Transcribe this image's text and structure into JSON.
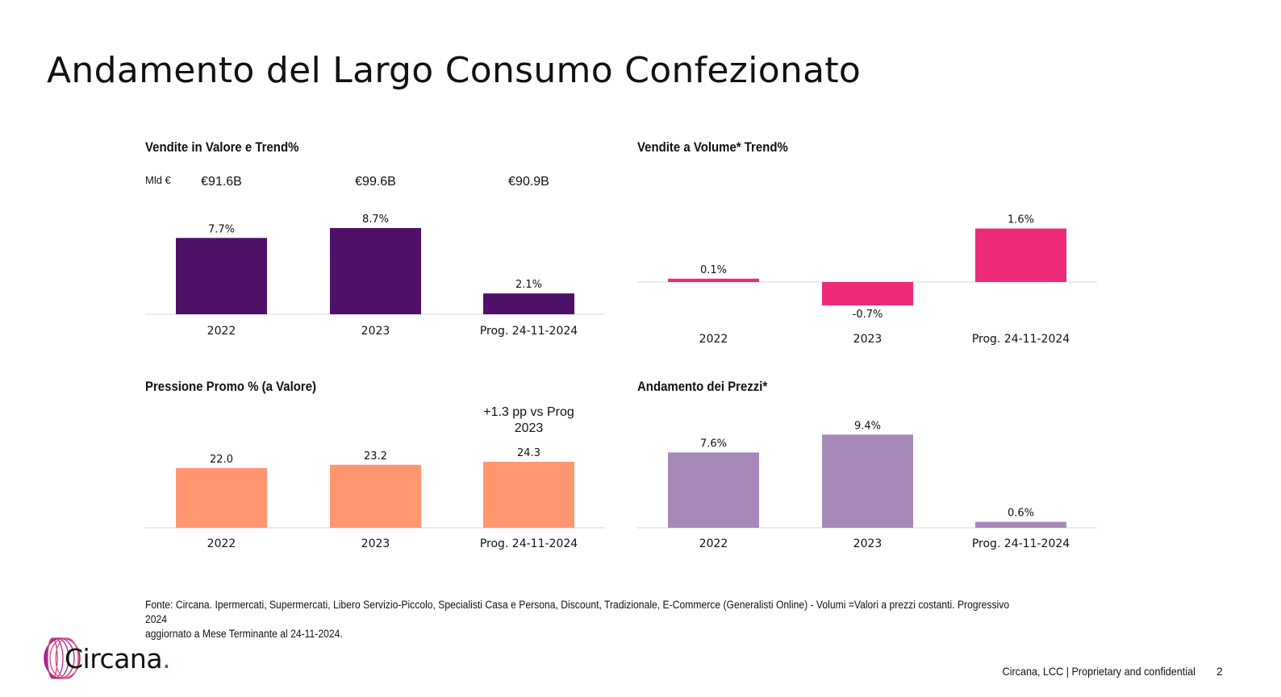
{
  "slide": {
    "title": "Andamento del Largo Consumo Confezionato",
    "footnote_line1": "Fonte: Circana. Ipermercati, Supermercati, Libero Servizio-Piccolo, Specialisti Casa e Persona, Discount, Tradizionale, E-Commerce (Generalisti Online) - Volumi =Valori a prezzi costanti. Progressivo 2024",
    "footnote_line2": "aggiornato a Mese Terminante al 24-11-2024.",
    "logo_text": "Circana",
    "logo_dot": ".",
    "footer_text": "Circana, LCC |  Proprietary and confidential",
    "page_number": "2"
  },
  "chart_data": [
    {
      "id": "vendite-valore",
      "type": "bar",
      "title": "Vendite in Valore e Trend%",
      "unit_label": "Mld €",
      "top_values": [
        "€91.6B",
        "€99.6B",
        "€90.9B"
      ],
      "categories": [
        "2022",
        "2023",
        "Prog. 24-11-2024"
      ],
      "values": [
        7.7,
        8.7,
        2.1
      ],
      "data_labels": [
        "7.7%",
        "8.7%",
        "2.1%"
      ],
      "color": "#4f1068",
      "xlabel": "",
      "ylabel": "",
      "grid": false
    },
    {
      "id": "vendite-volume",
      "type": "bar",
      "title": "Vendite a Volume* Trend%",
      "categories": [
        "2022",
        "2023",
        "Prog. 24-11-2024"
      ],
      "values": [
        0.1,
        -0.7,
        1.6
      ],
      "data_labels": [
        "0.1%",
        "-0.7%",
        "1.6%"
      ],
      "color": "#ee2b7a",
      "xlabel": "",
      "ylabel": "",
      "grid": false
    },
    {
      "id": "pressione-promo",
      "type": "bar",
      "title": "Pressione Promo % (a Valore)",
      "annotation": [
        "+1.3 pp vs Prog",
        "2023"
      ],
      "categories": [
        "2022",
        "2023",
        "Prog. 24-11-2024"
      ],
      "values": [
        22.0,
        23.2,
        24.3
      ],
      "data_labels": [
        "22.0",
        "23.2",
        "24.3"
      ],
      "color": "#ff9670",
      "xlabel": "",
      "ylabel": "",
      "grid": false
    },
    {
      "id": "andamento-prezzi",
      "type": "bar",
      "title": "Andamento dei Prezzi*",
      "categories": [
        "2022",
        "2023",
        "Prog. 24-11-2024"
      ],
      "values": [
        7.6,
        9.4,
        0.6
      ],
      "data_labels": [
        "7.6%",
        "9.4%",
        "0.6%"
      ],
      "color": "#a688b9",
      "xlabel": "",
      "ylabel": "",
      "grid": false
    }
  ]
}
